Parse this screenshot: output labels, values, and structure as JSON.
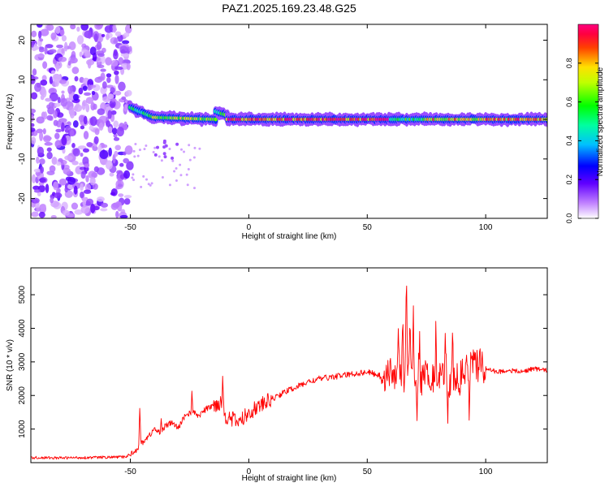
{
  "title": "PAZ1.2025.169.23.48.G25",
  "colorbar": {
    "label": "Normalized spectral amplitude",
    "ticks": [
      "0.0",
      "0.2",
      "0.4",
      "0.6",
      "0.8"
    ],
    "tick_values": [
      0.0,
      0.2,
      0.4,
      0.6,
      0.8
    ],
    "range": [
      0,
      1
    ]
  },
  "chart_data": [
    {
      "type": "heatmap",
      "xlabel": "Height of straight line (km)",
      "ylabel": "Frequency (Hz)",
      "xlim": [
        -92,
        126
      ],
      "ylim": [
        -25,
        24
      ],
      "x_ticks": [
        "-50",
        "0",
        "50",
        "100"
      ],
      "x_tick_values": [
        -50,
        0,
        50,
        100
      ],
      "y_ticks": [
        "-20",
        "-10",
        "0",
        "10",
        "20"
      ],
      "y_tick_values": [
        -20,
        -10,
        0,
        10,
        20
      ],
      "colormap": [
        "#ffffff",
        "#8000ff",
        "#0000ff",
        "#00ffff",
        "#00ff00",
        "#ffff00",
        "#ff0000",
        "#ff00a0"
      ],
      "noise_region_km": [
        -92,
        -50
      ],
      "ridge_frequency_hz": 0,
      "ridge_segments": [
        {
          "x": [
            -50,
            -40
          ],
          "f": [
            3,
            0.5
          ],
          "amp": 0.55
        },
        {
          "x": [
            -40,
            -14
          ],
          "f": [
            0.5,
            0
          ],
          "amp": 0.7
        },
        {
          "x": [
            -14,
            -9
          ],
          "f": [
            2,
            1
          ],
          "amp": 0.6
        },
        {
          "x": [
            -9,
            60
          ],
          "f": [
            0,
            0
          ],
          "amp": 0.95
        },
        {
          "x": [
            60,
            75
          ],
          "f": [
            0,
            0
          ],
          "amp": 0.6
        },
        {
          "x": [
            75,
            100
          ],
          "f": [
            0,
            0
          ],
          "amp": 0.8
        },
        {
          "x": [
            100,
            126
          ],
          "f": [
            0,
            0
          ],
          "amp": 0.9
        }
      ]
    },
    {
      "type": "line",
      "xlabel": "Height of straight line (km)",
      "ylabel": "SNR (10 * v/v)",
      "xlim": [
        -92,
        126
      ],
      "ylim": [
        0,
        5800
      ],
      "x_ticks": [
        "-50",
        "0",
        "50",
        "100"
      ],
      "x_tick_values": [
        -50,
        0,
        50,
        100
      ],
      "y_ticks": [
        "1000",
        "2000",
        "3000",
        "4000",
        "5000"
      ],
      "y_tick_values": [
        1000,
        2000,
        3000,
        4000,
        5000
      ],
      "color": "#ff0000",
      "series": [
        {
          "x": [
            -92,
            -80,
            -70,
            -60,
            -52,
            -48,
            -45,
            -42,
            -40,
            -38,
            -35,
            -32,
            -30,
            -27,
            -24,
            -21,
            -18,
            -15,
            -12,
            -10,
            -7,
            -4,
            0,
            5,
            10,
            15,
            20,
            25,
            30,
            35,
            40,
            45,
            50,
            55,
            58,
            62,
            65,
            67,
            70,
            73,
            76,
            80,
            85,
            90,
            95,
            100,
            105,
            110,
            115,
            120,
            126
          ],
          "y": [
            150,
            140,
            150,
            160,
            170,
            350,
            600,
            800,
            1000,
            900,
            1100,
            1200,
            1000,
            1400,
            1500,
            1400,
            1600,
            1700,
            1800,
            1400,
            1300,
            1200,
            1500,
            1700,
            1900,
            2100,
            2250,
            2400,
            2500,
            2550,
            2600,
            2650,
            2700,
            2600,
            2600,
            2700,
            2800,
            2700,
            2400,
            2500,
            2600,
            2500,
            2400,
            2600,
            2900,
            2800,
            2700,
            2750,
            2700,
            2800,
            2750
          ],
          "peaks": [
            {
              "x": -46,
              "y": 1650
            },
            {
              "x": -37,
              "y": 1250
            },
            {
              "x": -24,
              "y": 2150
            },
            {
              "x": -11,
              "y": 2700
            },
            {
              "x": 63,
              "y": 3800
            },
            {
              "x": 65,
              "y": 4600
            },
            {
              "x": 66.5,
              "y": 5800
            },
            {
              "x": 68,
              "y": 4100
            },
            {
              "x": 69.5,
              "y": 4900
            },
            {
              "x": 72,
              "y": 3800
            },
            {
              "x": 75,
              "y": 3400
            },
            {
              "x": 79,
              "y": 3900
            },
            {
              "x": 83,
              "y": 4000
            },
            {
              "x": 86,
              "y": 3600
            },
            {
              "x": 92,
              "y": 3700
            },
            {
              "x": 95,
              "y": 3500
            },
            {
              "x": 98,
              "y": 3200
            }
          ],
          "troughs": [
            {
              "x": 65.5,
              "y": 1600
            },
            {
              "x": 71,
              "y": 1400
            },
            {
              "x": 77,
              "y": 1600
            },
            {
              "x": 84,
              "y": 1400
            },
            {
              "x": 89,
              "y": 1500
            },
            {
              "x": 93,
              "y": 1500
            }
          ]
        }
      ]
    }
  ]
}
